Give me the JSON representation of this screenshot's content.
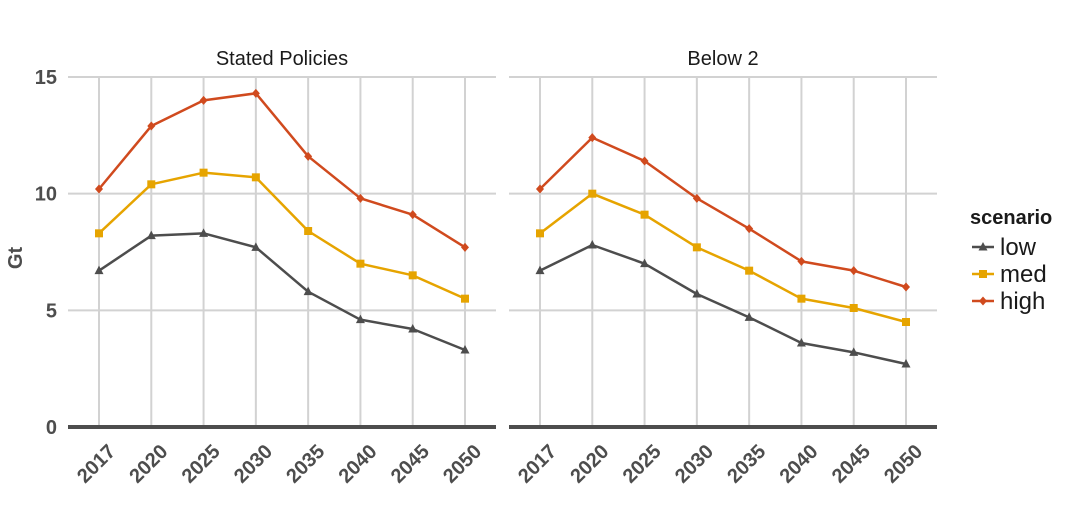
{
  "chart_data": {
    "type": "line",
    "ylabel": "Gt",
    "ylim": [
      0,
      15
    ],
    "yticks": [
      0,
      5,
      10,
      15
    ],
    "x": [
      "2017",
      "2020",
      "2025",
      "2030",
      "2035",
      "2040",
      "2045",
      "2050"
    ],
    "grid": true,
    "legend": {
      "title": "scenario",
      "placement": "right",
      "entries": [
        {
          "label": "low",
          "color": "#4d4d4d",
          "marker": "triangle"
        },
        {
          "label": "med",
          "color": "#e6a400",
          "marker": "square"
        },
        {
          "label": "high",
          "color": "#d04a1e",
          "marker": "diamond"
        }
      ]
    },
    "panels": [
      {
        "title": "Stated Policies",
        "series": [
          {
            "name": "low",
            "values": [
              6.7,
              8.2,
              8.3,
              7.7,
              5.8,
              4.6,
              4.2,
              3.3
            ]
          },
          {
            "name": "med",
            "values": [
              8.3,
              10.4,
              10.9,
              10.7,
              8.4,
              7.0,
              6.5,
              5.5
            ]
          },
          {
            "name": "high",
            "values": [
              10.2,
              12.9,
              14.0,
              14.3,
              11.6,
              9.8,
              9.1,
              7.7
            ]
          }
        ]
      },
      {
        "title": "Below 2",
        "series": [
          {
            "name": "low",
            "values": [
              6.7,
              7.8,
              7.0,
              5.7,
              4.7,
              3.6,
              3.2,
              2.7
            ]
          },
          {
            "name": "med",
            "values": [
              8.3,
              10.0,
              9.1,
              7.7,
              6.7,
              5.5,
              5.1,
              4.5
            ]
          },
          {
            "name": "high",
            "values": [
              10.2,
              12.4,
              11.4,
              9.8,
              8.5,
              7.1,
              6.7,
              6.0
            ]
          }
        ]
      }
    ]
  }
}
